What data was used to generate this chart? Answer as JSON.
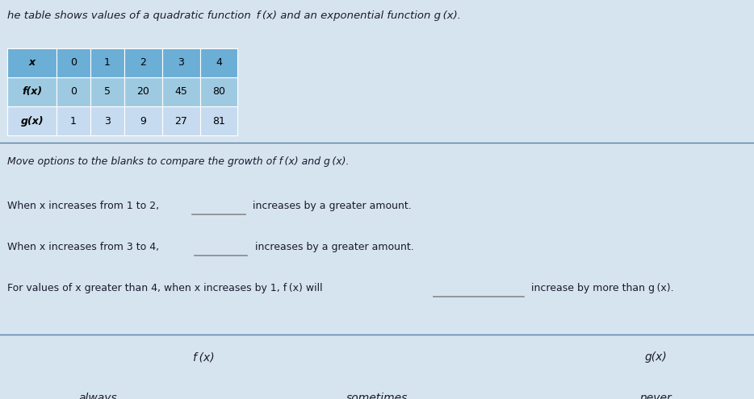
{
  "title_text": "he table shows values of a quadratic function  f (x) and an exponential function g (x).",
  "table_x_vals": [
    "x",
    "0",
    "1",
    "2",
    "3",
    "4"
  ],
  "table_fx_vals": [
    "f(x)",
    "0",
    "5",
    "20",
    "45",
    "80"
  ],
  "table_gx_vals": [
    "g(x)",
    "1",
    "3",
    "9",
    "27",
    "81"
  ],
  "move_options_text": "Move options to the blanks to compare the growth of f (x) and g (x).",
  "line1_pre": "When x increases from 1 to 2,",
  "line1_post": "increases by a greater amount.",
  "line2_pre": "When x increases from 3 to 4,",
  "line2_post": "increases by a greater amount.",
  "line3_pre": "For values of x greater than 4, when x increases by 1, f (x) will",
  "line3_post": "increase by more than g (x).",
  "option_fx": "f (x)",
  "option_gx": "g(x)",
  "option_always": "always",
  "option_sometimes": "sometimes",
  "option_never": "never",
  "bg_color": "#d6e4f0",
  "table_header_bg": "#6baed6",
  "table_row1_bg": "#9ecae1",
  "table_row2_bg": "#c6dbef",
  "text_color": "#1a1a2e",
  "font_size_title": 9.5,
  "font_size_body": 9,
  "font_size_table": 9,
  "separator_color": "#5a7fa8",
  "bottom_separator_color": "#5a7fa8"
}
